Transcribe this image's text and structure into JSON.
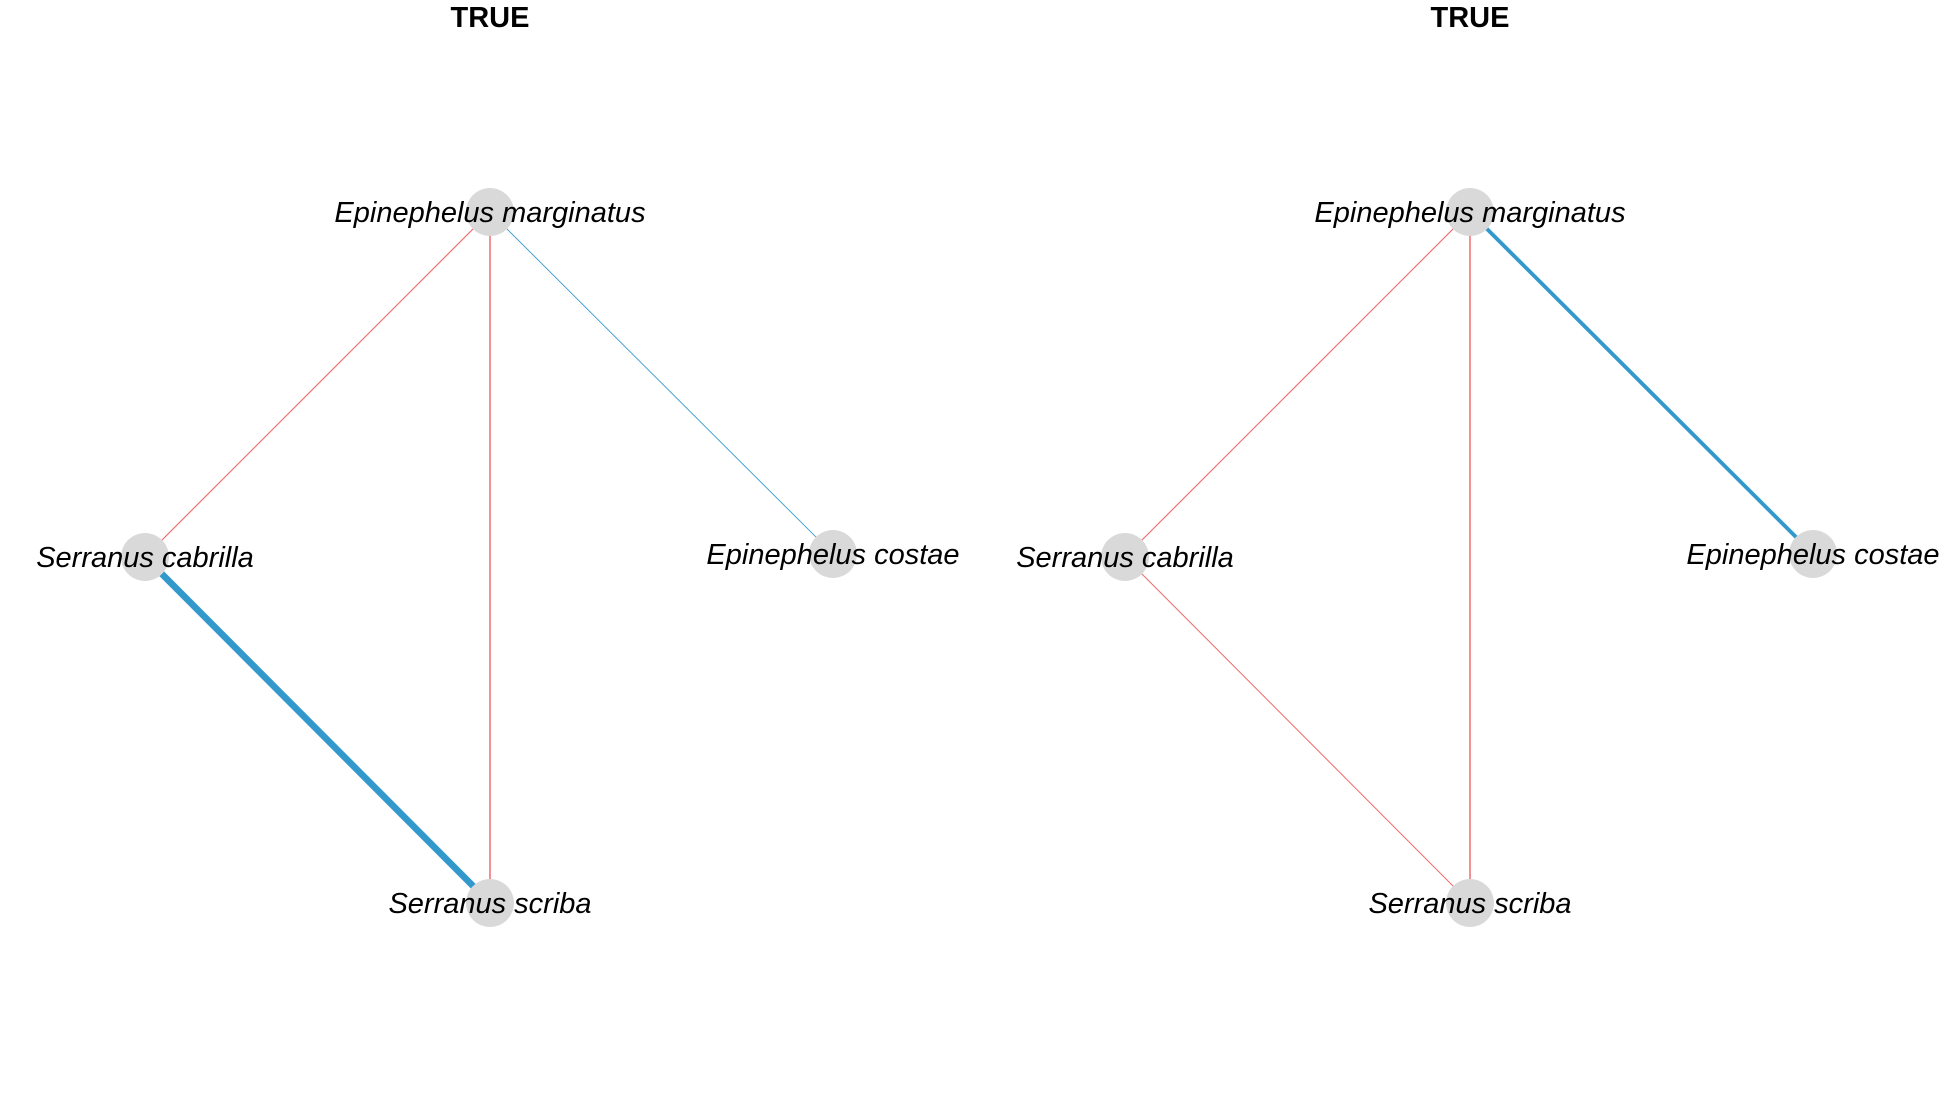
{
  "colors": {
    "positive_edge": "#3399cc",
    "negative_edge": "#ee6666",
    "node_fill": "#d9d9d9"
  },
  "panels": [
    {
      "title": "TRUE",
      "nodes": [
        {
          "id": "em",
          "label": "Epinephelus marginatus"
        },
        {
          "id": "sc",
          "label": "Serranus cabrilla"
        },
        {
          "id": "ec",
          "label": "Epinephelus costae"
        },
        {
          "id": "ss",
          "label": "Serranus scriba"
        }
      ],
      "edges": [
        {
          "from": "em",
          "to": "sc",
          "sign": "negative",
          "weight": 1
        },
        {
          "from": "em",
          "to": "ss",
          "sign": "negative",
          "weight": 1.3
        },
        {
          "from": "em",
          "to": "ec",
          "sign": "positive",
          "weight": 0.8
        },
        {
          "from": "sc",
          "to": "ss",
          "sign": "positive",
          "weight": 6
        }
      ]
    },
    {
      "title": "TRUE",
      "nodes": [
        {
          "id": "em",
          "label": "Epinephelus marginatus"
        },
        {
          "id": "sc",
          "label": "Serranus cabrilla"
        },
        {
          "id": "ec",
          "label": "Epinephelus costae"
        },
        {
          "id": "ss",
          "label": "Serranus scriba"
        }
      ],
      "edges": [
        {
          "from": "em",
          "to": "sc",
          "sign": "negative",
          "weight": 1
        },
        {
          "from": "em",
          "to": "ss",
          "sign": "negative",
          "weight": 1.3
        },
        {
          "from": "em",
          "to": "ec",
          "sign": "positive",
          "weight": 3.5
        },
        {
          "from": "sc",
          "to": "ss",
          "sign": "negative",
          "weight": 0.9
        }
      ]
    }
  ]
}
